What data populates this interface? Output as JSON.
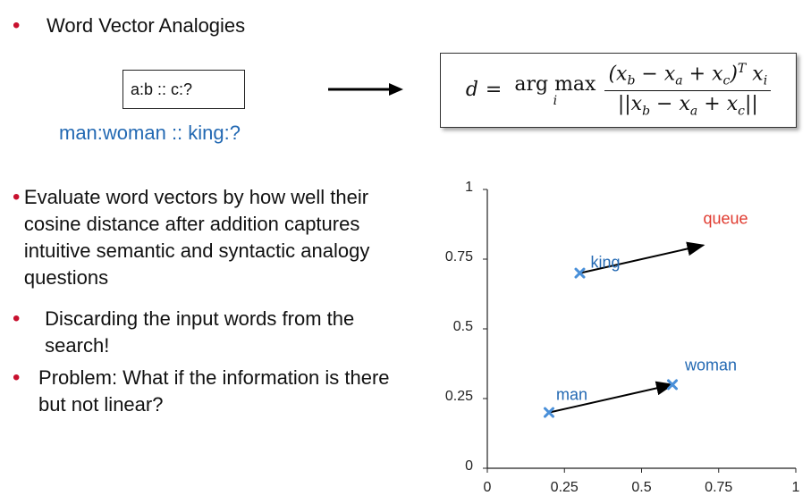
{
  "heading": "Word Vector Analogies",
  "analogy_box": "a:b :: c:?",
  "example": "man:woman :: king:?",
  "formula": {
    "lhs": "d",
    "eq": "=",
    "argmax": "arg max",
    "argmax_sub": "i",
    "numerator": "(x_b − x_a + x_c)^T x_i",
    "denominator": "||x_b − x_a + x_c||"
  },
  "bullets": [
    "Evaluate word vectors by how well their cosine distance after addition captures intuitive semantic and syntactic analogy questions",
    "Discarding the input words from the search!",
    "Problem: What if the information is there but not linear?"
  ],
  "colors": {
    "bullet": "#c8102e",
    "word": "#2369b3",
    "answer": "#e03a2f",
    "marker": "#4a90d9"
  },
  "chart_data": {
    "type": "scatter",
    "xlim": [
      0,
      1
    ],
    "ylim": [
      0,
      1
    ],
    "xticks": [
      "0",
      "0.25",
      "0.5",
      "0.75",
      "1"
    ],
    "yticks": [
      "0",
      "0.25",
      "0.5",
      "0.75",
      "1"
    ],
    "grid": false,
    "points": [
      {
        "label": "king",
        "x": 0.3,
        "y": 0.7
      },
      {
        "label": "man",
        "x": 0.2,
        "y": 0.2
      },
      {
        "label": "woman",
        "x": 0.6,
        "y": 0.3
      }
    ],
    "arrows": [
      {
        "from": [
          0.2,
          0.2
        ],
        "to": [
          0.6,
          0.3
        ]
      },
      {
        "from": [
          0.3,
          0.7
        ],
        "to": [
          0.7,
          0.8
        ]
      }
    ],
    "annotations": [
      {
        "text": "queue",
        "x": 0.7,
        "y": 0.8,
        "color": "#e03a2f"
      }
    ]
  }
}
